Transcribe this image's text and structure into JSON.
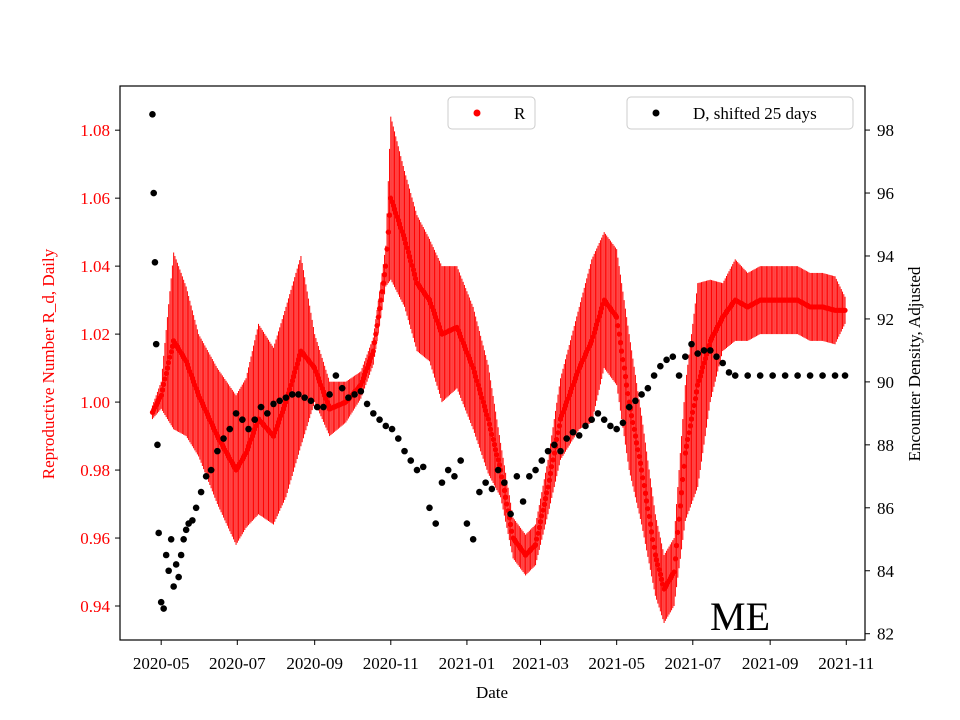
{
  "chart_data": {
    "type": "scatter",
    "watermark": "ME",
    "xlabel": "Date",
    "ylabel_left": "Reproductive Number R_d, Daily",
    "ylabel_right": "Encounter Density, Adjusted",
    "x_ticks": [
      "2020-05",
      "2020-07",
      "2020-09",
      "2020-11",
      "2021-01",
      "2021-03",
      "2021-05",
      "2021-07",
      "2021-09",
      "2021-11"
    ],
    "y_left_ticks": [
      "0.94",
      "0.96",
      "0.98",
      "1.00",
      "1.02",
      "1.04",
      "1.06",
      "1.08"
    ],
    "y_right_ticks": [
      "82",
      "84",
      "86",
      "88",
      "90",
      "92",
      "94",
      "96",
      "98"
    ],
    "ylim_left": [
      0.93,
      1.093
    ],
    "ylim_right": [
      81.8,
      99.4
    ],
    "xlim": [
      -33,
      564
    ],
    "x_tick_positions_days": [
      0,
      61,
      123,
      184,
      245,
      304,
      365,
      426,
      488,
      549
    ],
    "colors": {
      "R": "#ff0000",
      "D": "#000000"
    },
    "series": [
      {
        "name": "R",
        "axis": "left",
        "legend": "R",
        "color": "#ff0000",
        "day": [
          -7,
          0,
          10,
          20,
          30,
          45,
          60,
          68,
          78,
          90,
          100,
          112,
          123,
          135,
          148,
          160,
          170,
          180,
          184,
          195,
          205,
          215,
          225,
          237,
          250,
          262,
          272,
          282,
          292,
          300,
          310,
          320,
          335,
          345,
          355,
          365,
          375,
          385,
          396,
          403,
          411,
          420,
          430,
          440,
          450,
          460,
          470,
          480,
          490,
          500,
          510,
          520,
          530,
          540,
          548
        ],
        "value": [
          0.997,
          1.002,
          1.018,
          1.012,
          1.002,
          0.99,
          0.98,
          0.985,
          0.995,
          0.99,
          1.0,
          1.015,
          1.01,
          0.998,
          1.0,
          1.005,
          1.015,
          1.04,
          1.06,
          1.048,
          1.035,
          1.03,
          1.02,
          1.022,
          1.01,
          0.995,
          0.98,
          0.96,
          0.955,
          0.958,
          0.975,
          0.995,
          1.01,
          1.018,
          1.03,
          1.025,
          1.0,
          0.98,
          0.955,
          0.945,
          0.95,
          0.985,
          1.005,
          1.018,
          1.025,
          1.03,
          1.028,
          1.03,
          1.03,
          1.03,
          1.03,
          1.028,
          1.028,
          1.027,
          1.027
        ],
        "band": [
          0.002,
          0.004,
          0.026,
          0.022,
          0.018,
          0.02,
          0.022,
          0.022,
          0.028,
          0.026,
          0.028,
          0.028,
          0.01,
          0.008,
          0.006,
          0.004,
          0.004,
          0.006,
          0.024,
          0.02,
          0.02,
          0.018,
          0.02,
          0.018,
          0.018,
          0.016,
          0.008,
          0.006,
          0.006,
          0.006,
          0.008,
          0.012,
          0.018,
          0.024,
          0.02,
          0.02,
          0.02,
          0.016,
          0.012,
          0.01,
          0.01,
          0.02,
          0.03,
          0.018,
          0.01,
          0.012,
          0.01,
          0.01,
          0.01,
          0.01,
          0.01,
          0.01,
          0.01,
          0.01,
          0.004
        ]
      },
      {
        "name": "D, shifted 25 days",
        "axis": "right",
        "legend": "D, shifted 25 days",
        "color": "#000000",
        "day": [
          -7,
          -6,
          -5,
          -4,
          -3,
          -2,
          0,
          2,
          4,
          6,
          8,
          10,
          12,
          14,
          16,
          18,
          20,
          22,
          25,
          28,
          32,
          36,
          40,
          45,
          50,
          55,
          60,
          65,
          70,
          75,
          80,
          85,
          90,
          95,
          100,
          105,
          110,
          115,
          120,
          125,
          130,
          135,
          140,
          145,
          150,
          155,
          160,
          165,
          170,
          175,
          180,
          185,
          190,
          195,
          200,
          205,
          210,
          215,
          220,
          225,
          230,
          235,
          240,
          245,
          250,
          255,
          260,
          265,
          270,
          275,
          280,
          285,
          290,
          295,
          300,
          305,
          310,
          315,
          320,
          325,
          330,
          335,
          340,
          345,
          350,
          355,
          360,
          365,
          370,
          375,
          380,
          385,
          390,
          395,
          400,
          405,
          410,
          415,
          420,
          425,
          430,
          435,
          440,
          445,
          450,
          455,
          460,
          470,
          480,
          490,
          500,
          510,
          520,
          530,
          540,
          548
        ],
        "value": [
          98.5,
          96.0,
          93.8,
          91.2,
          88.0,
          85.2,
          83.0,
          82.8,
          84.5,
          84.0,
          85.0,
          83.5,
          84.2,
          83.8,
          84.5,
          85.0,
          85.3,
          85.5,
          85.6,
          86.0,
          86.5,
          87.0,
          87.2,
          87.8,
          88.2,
          88.5,
          89.0,
          88.8,
          88.5,
          88.8,
          89.2,
          89.0,
          89.3,
          89.4,
          89.5,
          89.6,
          89.6,
          89.5,
          89.4,
          89.2,
          89.2,
          89.6,
          90.2,
          89.8,
          89.5,
          89.6,
          89.7,
          89.3,
          89.0,
          88.8,
          88.6,
          88.5,
          88.2,
          87.8,
          87.5,
          87.2,
          87.3,
          86.0,
          85.5,
          86.8,
          87.2,
          87.0,
          87.5,
          85.5,
          85.0,
          86.5,
          86.8,
          86.6,
          87.2,
          86.8,
          85.8,
          87.0,
          86.2,
          87.0,
          87.2,
          87.5,
          87.8,
          88.0,
          87.8,
          88.2,
          88.4,
          88.3,
          88.6,
          88.8,
          89.0,
          88.8,
          88.6,
          88.5,
          88.7,
          89.2,
          89.4,
          89.6,
          89.8,
          90.2,
          90.5,
          90.7,
          90.8,
          90.2,
          90.8,
          91.2,
          90.9,
          91.0,
          91.0,
          90.8,
          90.6,
          90.3,
          90.2,
          90.2,
          90.2,
          90.2,
          90.2,
          90.2,
          90.2,
          90.2,
          90.2,
          90.2
        ]
      }
    ]
  }
}
